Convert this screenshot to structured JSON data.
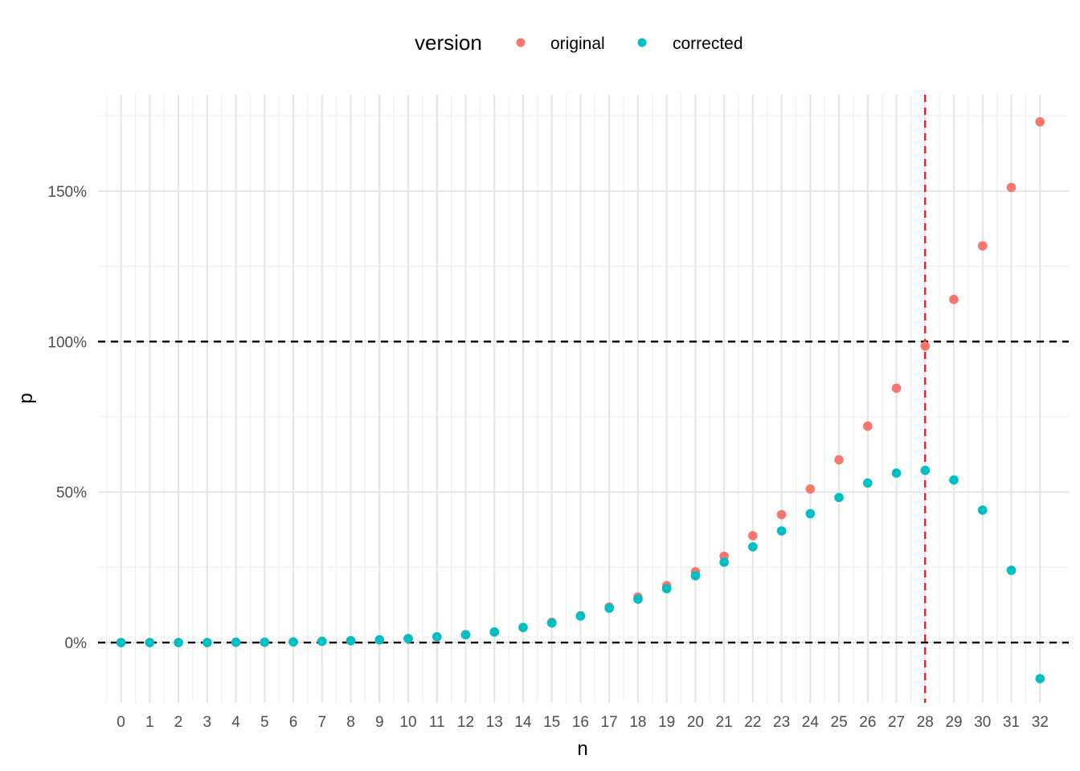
{
  "chart_data": {
    "type": "scatter",
    "xlabel": "n",
    "ylabel": "p",
    "xlim": [
      -0.8,
      33.0
    ],
    "ylim": [
      -0.2,
      1.82
    ],
    "x_ticks": [
      0,
      1,
      2,
      3,
      4,
      5,
      6,
      7,
      8,
      9,
      10,
      11,
      12,
      13,
      14,
      15,
      16,
      17,
      18,
      19,
      20,
      21,
      22,
      23,
      24,
      25,
      26,
      27,
      28,
      29,
      30,
      31,
      32
    ],
    "y_ticks": [
      0,
      0.5,
      1.0,
      1.5
    ],
    "y_tick_labels": [
      "0%",
      "50%",
      "100%",
      "150%"
    ],
    "y_minor_ticks": [
      0.25,
      0.75,
      1.25,
      1.75
    ],
    "grid": true,
    "legend": {
      "title": "version",
      "position": "top",
      "entries": [
        {
          "name": "original",
          "color": "#F8766D"
        },
        {
          "name": "corrected",
          "color": "#00BFC4"
        }
      ]
    },
    "reference_lines": [
      {
        "axis": "y",
        "value": 0,
        "color": "#000000",
        "style": "dashed"
      },
      {
        "axis": "y",
        "value": 1.0,
        "color": "#000000",
        "style": "dashed"
      },
      {
        "axis": "x",
        "value": 28,
        "color": "#E41A1C",
        "style": "dashed"
      }
    ],
    "x": [
      0,
      1,
      2,
      3,
      4,
      5,
      6,
      7,
      8,
      9,
      10,
      11,
      12,
      13,
      14,
      15,
      16,
      17,
      18,
      19,
      20,
      21,
      22,
      23,
      24,
      25,
      26,
      27,
      28,
      29,
      30,
      31,
      32
    ],
    "series": [
      {
        "name": "original",
        "color": "#F8766D",
        "values": [
          0.0,
          0.0,
          0.0,
          0.0,
          0.001,
          0.001,
          0.002,
          0.004,
          0.006,
          0.009,
          0.013,
          0.019,
          0.026,
          0.035,
          0.05,
          0.067,
          0.089,
          0.118,
          0.151,
          0.189,
          0.235,
          0.287,
          0.355,
          0.425,
          0.51,
          0.607,
          0.719,
          0.845,
          0.985,
          1.14,
          1.318,
          1.512,
          1.73
        ]
      },
      {
        "name": "corrected",
        "color": "#00BFC4",
        "values": [
          0.0,
          0.0,
          0.0,
          0.0,
          0.001,
          0.001,
          0.002,
          0.004,
          0.006,
          0.009,
          0.013,
          0.019,
          0.026,
          0.035,
          0.05,
          0.065,
          0.088,
          0.114,
          0.144,
          0.179,
          0.222,
          0.267,
          0.318,
          0.371,
          0.428,
          0.482,
          0.53,
          0.563,
          0.572,
          0.54,
          0.44,
          0.24,
          -0.12
        ]
      }
    ]
  }
}
